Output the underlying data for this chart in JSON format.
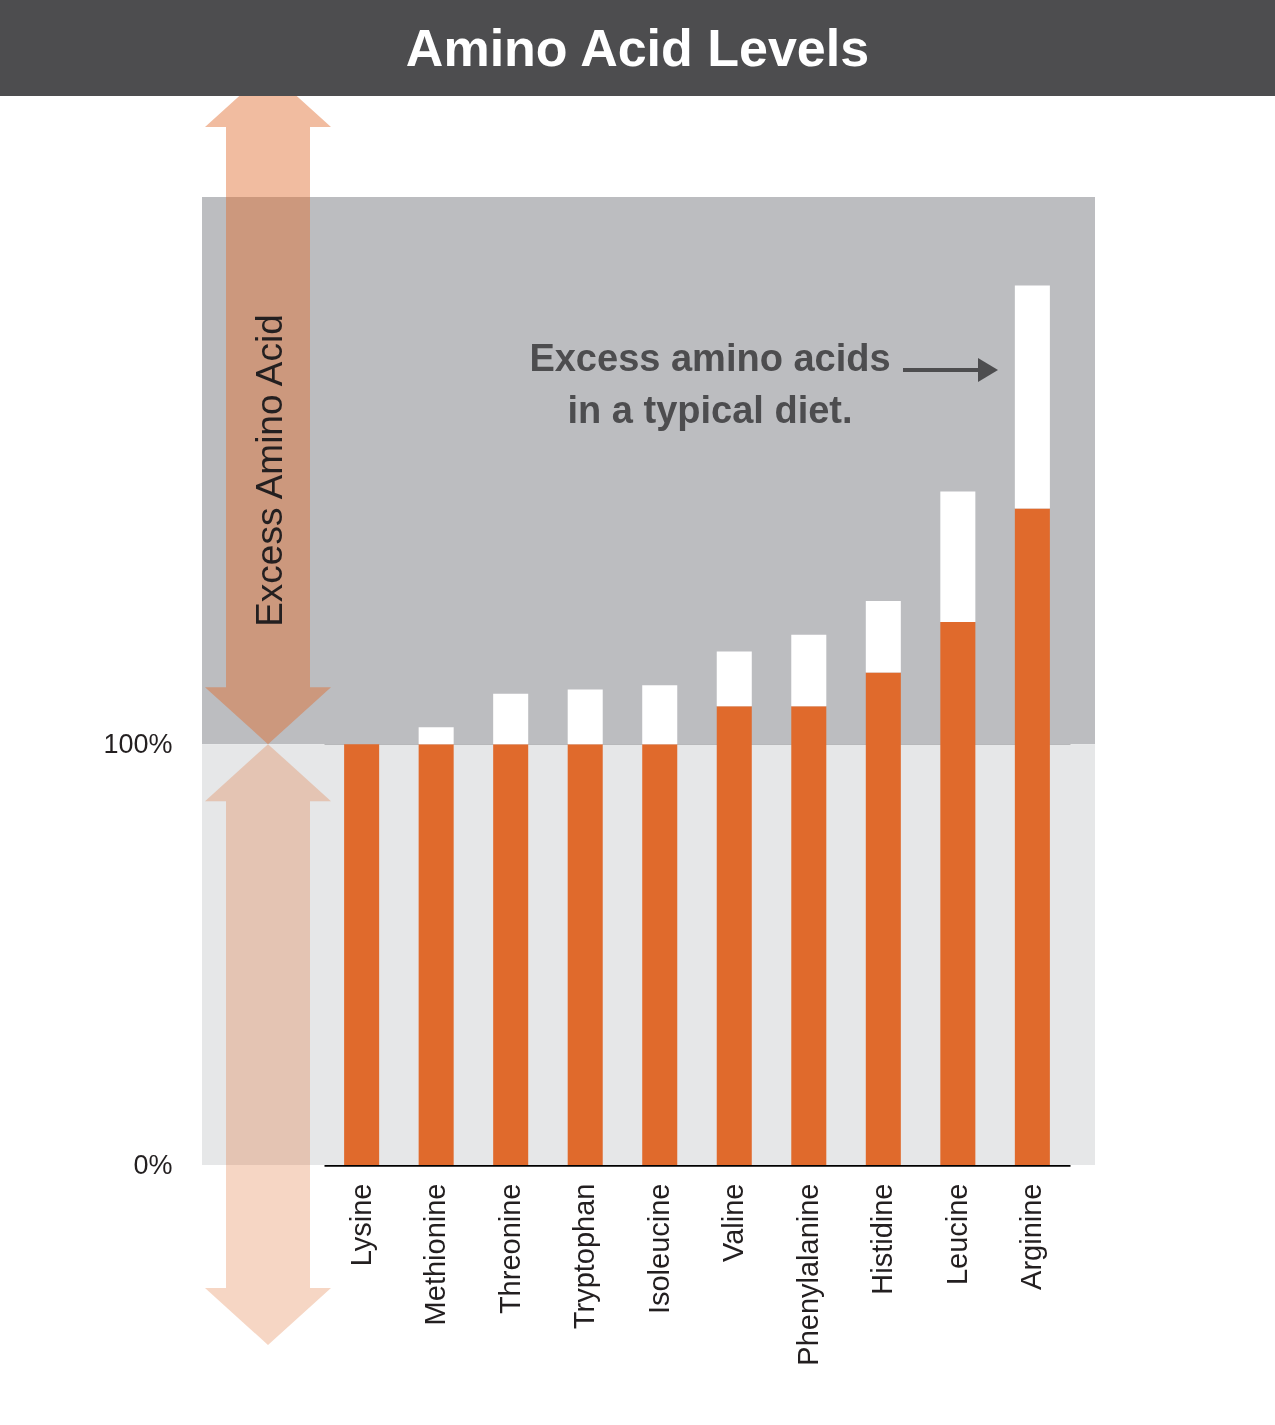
{
  "chart_data": {
    "type": "bar",
    "title": "Amino Acid Levels",
    "categories": [
      "Lysine",
      "Methionine",
      "Threonine",
      "Tryptophan",
      "Isoleucine",
      "Valine",
      "Phenylalanine",
      "Histidine",
      "Leucine",
      "Arginine"
    ],
    "stacked": true,
    "series": [
      {
        "color": "#e06a2c",
        "values": [
          100,
          100,
          100,
          100,
          100,
          109,
          109,
          117,
          129,
          156
        ]
      },
      {
        "color": "#ffffff",
        "values": [
          null,
          4,
          12,
          13,
          14,
          13,
          17,
          17,
          31,
          53
        ]
      }
    ],
    "ylim": [
      0,
      230
    ],
    "yticks": [
      {
        "value": 0,
        "label": "0%"
      },
      {
        "value": 100,
        "label": "100%"
      }
    ],
    "grid": "y",
    "bands": [
      {
        "axis": "y",
        "from": 100,
        "to": 230,
        "color": "#bcbdc0",
        "label": "Excess Amino Acid"
      },
      {
        "axis": "y",
        "from": 0,
        "to": 100,
        "color": "#e6e7e8"
      }
    ],
    "annotations": [
      "Excess amino acids\nin a typical diet."
    ]
  }
}
